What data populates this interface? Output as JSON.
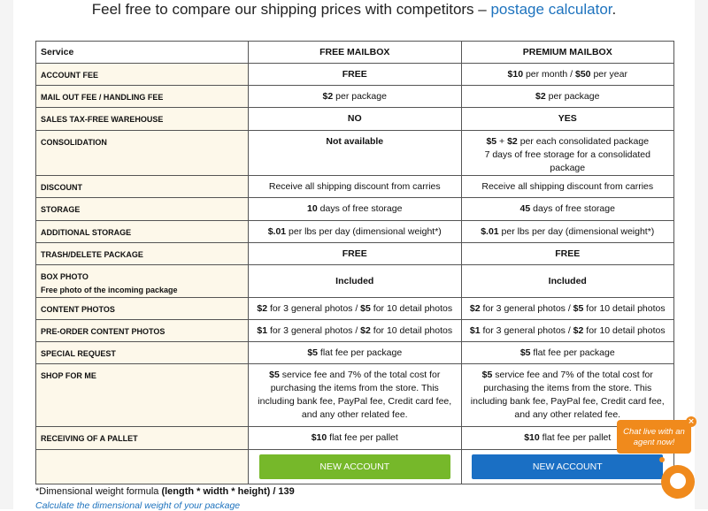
{
  "headline": {
    "text": "Feel free to compare our shipping prices with competitors – ",
    "link": "postage calculator",
    "end": "."
  },
  "table": {
    "headers": [
      "Service",
      "FREE MAILBOX",
      "PREMIUM MAILBOX"
    ],
    "rows": [
      {
        "label": [
          "ACCOUNT FEE"
        ],
        "free": [
          [
            {
              "b": "FREE"
            }
          ]
        ],
        "premium": [
          [
            {
              "b": "$10"
            },
            {
              "t": " per month / "
            },
            {
              "b": "$50"
            },
            {
              "t": " per year"
            }
          ]
        ]
      },
      {
        "label": [
          "MAIL OUT FEE / HANDLING FEE"
        ],
        "free": [
          [
            {
              "b": "$2"
            },
            {
              "t": " per package"
            }
          ]
        ],
        "premium": [
          [
            {
              "b": "$2"
            },
            {
              "t": " per package"
            }
          ]
        ]
      },
      {
        "label": [
          "SALES TAX-FREE WAREHOUSE"
        ],
        "free": [
          [
            {
              "b": "NO"
            }
          ]
        ],
        "premium": [
          [
            {
              "b": "YES"
            }
          ]
        ]
      },
      {
        "label": [
          "CONSOLIDATION"
        ],
        "top": true,
        "free": [
          [
            {
              "b": "Not available"
            }
          ]
        ],
        "premium": [
          [
            {
              "b": "$5"
            },
            {
              "t": " + "
            },
            {
              "b": "$2"
            },
            {
              "t": " per each consolidated package"
            }
          ],
          [
            {
              "t": "7 days of free storage for a consolidated package"
            }
          ]
        ]
      },
      {
        "label": [
          "DISCOUNT"
        ],
        "free": [
          [
            {
              "t": "Receive all shipping discount from carries"
            }
          ]
        ],
        "premium": [
          [
            {
              "t": "Receive all shipping discount from carries"
            }
          ]
        ]
      },
      {
        "label": [
          "STORAGE"
        ],
        "free": [
          [
            {
              "b": "10"
            },
            {
              "t": " days of free storage"
            }
          ]
        ],
        "premium": [
          [
            {
              "b": "45"
            },
            {
              "t": " days of free storage"
            }
          ]
        ]
      },
      {
        "label": [
          "ADDITIONAL STORAGE"
        ],
        "free": [
          [
            {
              "b": "$.01"
            },
            {
              "t": " per lbs per day (dimensional weight*)"
            }
          ]
        ],
        "premium": [
          [
            {
              "b": "$.01"
            },
            {
              "t": " per lbs per day (dimensional weight*)"
            }
          ]
        ]
      },
      {
        "label": [
          "TRASH/DELETE PACKAGE"
        ],
        "free": [
          [
            {
              "b": "FREE"
            }
          ]
        ],
        "premium": [
          [
            {
              "b": "FREE"
            }
          ]
        ]
      },
      {
        "label": [
          "BOX PHOTO",
          "Free photo of the incoming package"
        ],
        "free": [
          [
            {
              "b": "Included"
            }
          ]
        ],
        "premium": [
          [
            {
              "b": "Included"
            }
          ]
        ]
      },
      {
        "label": [
          "CONTENT PHOTOS"
        ],
        "free": [
          [
            {
              "b": "$2"
            },
            {
              "t": " for 3 general photos / "
            },
            {
              "b": "$5"
            },
            {
              "t": " for 10 detail photos"
            }
          ]
        ],
        "premium": [
          [
            {
              "b": "$2"
            },
            {
              "t": " for 3 general photos / "
            },
            {
              "b": "$5"
            },
            {
              "t": " for 10 detail photos"
            }
          ]
        ]
      },
      {
        "label": [
          "PRE-ORDER CONTENT PHOTOS"
        ],
        "free": [
          [
            {
              "b": "$1"
            },
            {
              "t": " for 3 general photos / "
            },
            {
              "b": "$2"
            },
            {
              "t": " for 10 detail photos"
            }
          ]
        ],
        "premium": [
          [
            {
              "b": "$1"
            },
            {
              "t": " for 3 general photos / "
            },
            {
              "b": "$2"
            },
            {
              "t": " for 10 detail photos"
            }
          ]
        ]
      },
      {
        "label": [
          "SPECIAL REQUEST"
        ],
        "free": [
          [
            {
              "b": "$5"
            },
            {
              "t": " flat fee per package"
            }
          ]
        ],
        "premium": [
          [
            {
              "b": "$5"
            },
            {
              "t": " flat fee per package"
            }
          ]
        ]
      },
      {
        "label": [
          "SHOP FOR ME"
        ],
        "free": [
          [
            {
              "b": "$5"
            },
            {
              "t": " service fee and 7% of the total cost for purchasing the items from the store. This including bank fee, PayPal fee, Credit card fee, and any other related fee."
            }
          ]
        ],
        "premium": [
          [
            {
              "b": "$5"
            },
            {
              "t": " service fee and 7% of the total cost for purchasing the items from the store. This including bank fee, PayPal fee, Credit card fee, and any other related fee."
            }
          ]
        ]
      },
      {
        "label": [
          "RECEIVING OF A PALLET"
        ],
        "free": [
          [
            {
              "b": "$10"
            },
            {
              "t": " flat fee per pallet"
            }
          ]
        ],
        "premium": [
          [
            {
              "b": "$10"
            },
            {
              "t": " flat fee per pallet"
            }
          ]
        ]
      }
    ],
    "buttons": {
      "free": "NEW ACCOUNT",
      "premium": "NEW ACCOUNT"
    }
  },
  "colors": {
    "free_button": "#76b82a",
    "premium_button": "#1a6fc4",
    "chat": "#f08a1c",
    "label_bg": "#fdf8ea"
  },
  "note": {
    "prefix": "*Dimensional weight formula ",
    "formula": "(length * width * height) / 139"
  },
  "calc_link": "Calculate the dimensional weight of your package",
  "chat": {
    "text": "Chat live with an agent now!",
    "close": "×"
  }
}
